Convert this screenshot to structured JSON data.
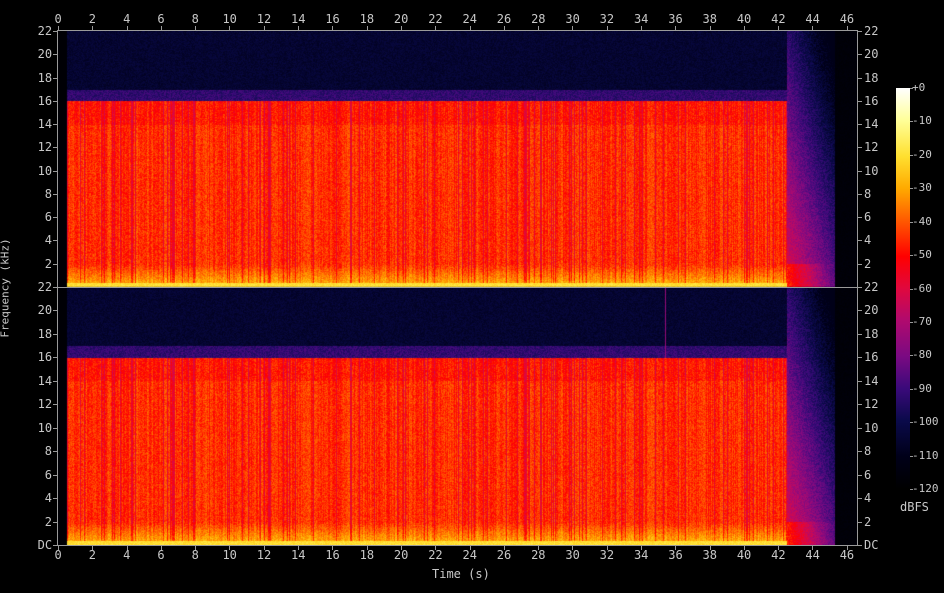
{
  "chart_data": {
    "type": "heatmap",
    "subtype": "spectrogram",
    "channels": 2,
    "xlabel": "Time (s)",
    "ylabel": "Frequency (kHz)",
    "xlim": [
      0,
      46.6
    ],
    "ylim": [
      0,
      22
    ],
    "x_ticks": [
      "0",
      "2",
      "4",
      "6",
      "8",
      "10",
      "12",
      "14",
      "16",
      "18",
      "20",
      "22",
      "24",
      "26",
      "28",
      "30",
      "32",
      "34",
      "36",
      "38",
      "40",
      "42",
      "44",
      "46"
    ],
    "y_ticks_top": [
      "2",
      "4",
      "6",
      "8",
      "10",
      "12",
      "14",
      "16",
      "18",
      "20",
      "22"
    ],
    "y_ticks_bottom": [
      "DC",
      "2",
      "4",
      "6",
      "8",
      "10",
      "12",
      "14",
      "16",
      "18",
      "20",
      "22"
    ],
    "colorbar": {
      "label": "dBFS",
      "range": [
        -120,
        0
      ],
      "ticks": [
        "+0",
        "-10",
        "-20",
        "-30",
        "-40",
        "-50",
        "-60",
        "-70",
        "-80",
        "-90",
        "-100",
        "-110",
        "-120"
      ],
      "colors": {
        "-120": "#000000",
        "-110": "#000018",
        "-100": "#0a0a4a",
        "-90": "#3a0a7a",
        "-80": "#7a0a82",
        "-70": "#b00a6e",
        "-60": "#e0083e",
        "-50": "#ff0000",
        "-40": "#ff5a00",
        "-30": "#ffaa00",
        "-20": "#ffe030",
        "-10": "#ffff99",
        "0": "#ffffff"
      }
    },
    "content": {
      "audio_start_s": 0.5,
      "full_band_end_s": 42.5,
      "decay_end_s": 45.3,
      "cutoff_khz": 16,
      "band_level_db": -45,
      "low_freq_level_db": -20,
      "above_cutoff_level_db": -105
    },
    "grid": false
  }
}
